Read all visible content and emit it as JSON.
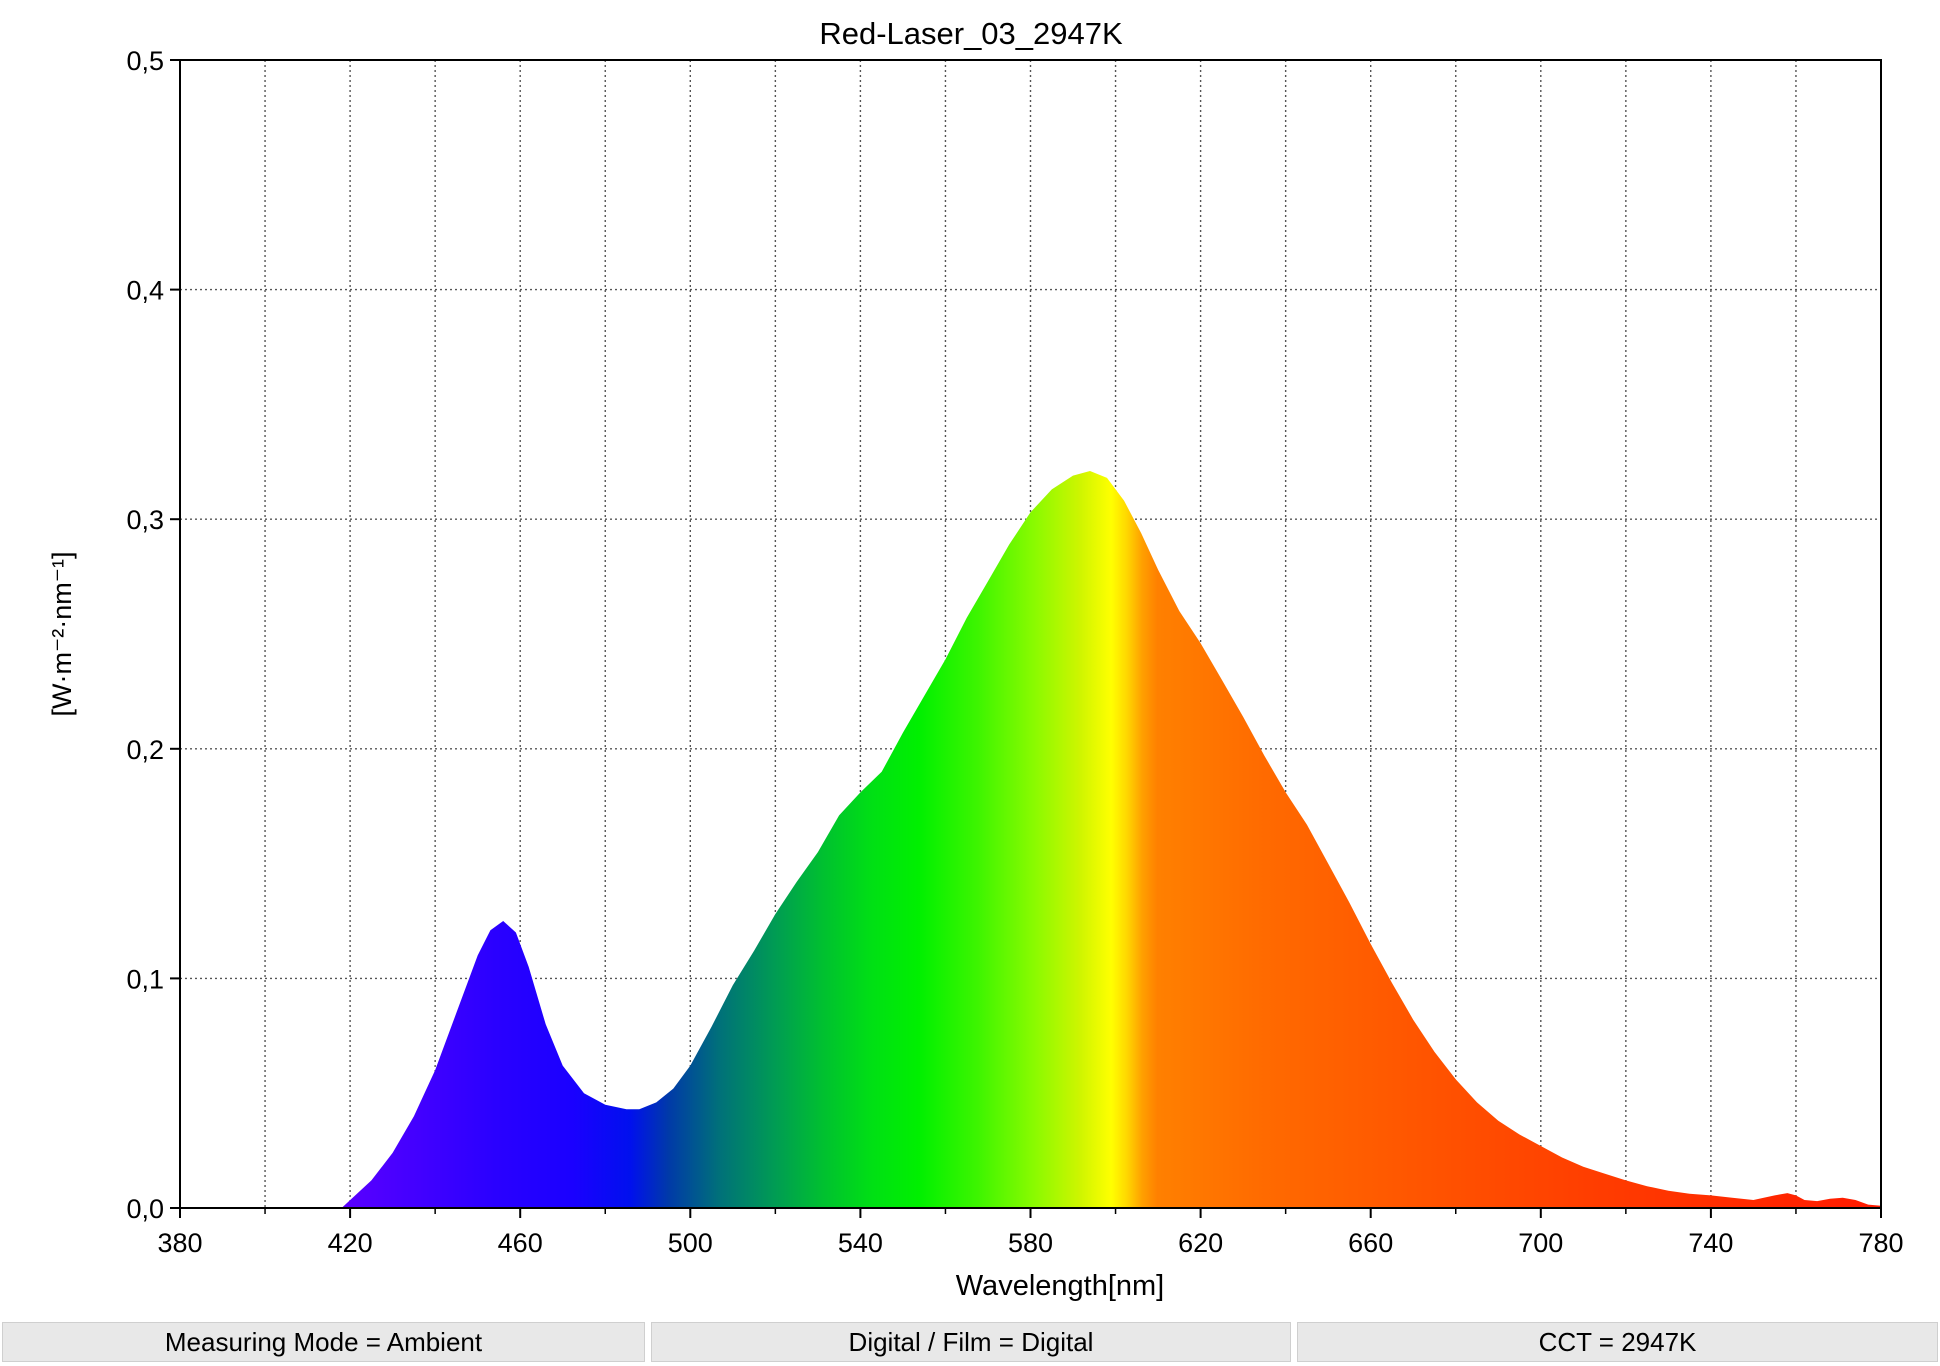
{
  "chart_data": {
    "type": "area",
    "title": "Red-Laser_03_2947K",
    "xlabel": "Wavelength[nm]",
    "ylabel": "[W·m⁻²·nm⁻¹]",
    "xlim": [
      380,
      780
    ],
    "ylim": [
      0,
      0.5
    ],
    "xticks": [
      380,
      420,
      460,
      500,
      540,
      580,
      620,
      660,
      700,
      740,
      780
    ],
    "xtick_labels": [
      "380",
      "420",
      "460",
      "500",
      "540",
      "580",
      "620",
      "660",
      "700",
      "740",
      "780"
    ],
    "yticks": [
      0,
      0.1,
      0.2,
      0.3,
      0.4,
      0.5
    ],
    "ytick_labels": [
      "0,0",
      "0,1",
      "0,2",
      "0,3",
      "0,4",
      "0,5"
    ],
    "grid": true,
    "fill": "visible-spectrum gradient",
    "series": [
      {
        "x": [
          418,
          425,
          430,
          435,
          440,
          445,
          450,
          453,
          456,
          459,
          462,
          466,
          470,
          475,
          480,
          485,
          488,
          492,
          496,
          500,
          505,
          510,
          515,
          520,
          525,
          530,
          535,
          540,
          545,
          550,
          555,
          560,
          565,
          570,
          575,
          580,
          585,
          590,
          594,
          598,
          602,
          606,
          610,
          615,
          620,
          625,
          630,
          635,
          640,
          645,
          650,
          655,
          660,
          665,
          670,
          675,
          680,
          685,
          690,
          695,
          700,
          705,
          710,
          715,
          720,
          725,
          730,
          735,
          740,
          745,
          750,
          755,
          758,
          760,
          762,
          765,
          768,
          771,
          774,
          777,
          780
        ],
        "y": [
          0.0,
          0.012,
          0.024,
          0.04,
          0.06,
          0.085,
          0.11,
          0.121,
          0.125,
          0.12,
          0.105,
          0.08,
          0.062,
          0.05,
          0.045,
          0.043,
          0.043,
          0.046,
          0.052,
          0.062,
          0.079,
          0.097,
          0.112,
          0.128,
          0.142,
          0.155,
          0.171,
          0.181,
          0.19,
          0.207,
          0.223,
          0.239,
          0.257,
          0.273,
          0.289,
          0.303,
          0.313,
          0.319,
          0.321,
          0.318,
          0.308,
          0.294,
          0.278,
          0.26,
          0.246,
          0.23,
          0.214,
          0.197,
          0.181,
          0.167,
          0.15,
          0.133,
          0.115,
          0.098,
          0.082,
          0.068,
          0.056,
          0.046,
          0.038,
          0.032,
          0.027,
          0.022,
          0.018,
          0.015,
          0.012,
          0.0095,
          0.0075,
          0.0062,
          0.0055,
          0.0045,
          0.0035,
          0.0055,
          0.0065,
          0.0055,
          0.0035,
          0.003,
          0.004,
          0.0045,
          0.0035,
          0.0015,
          0.001
        ]
      }
    ]
  },
  "status": {
    "measuring_mode": "Measuring Mode = Ambient",
    "digital_film": "Digital / Film = Digital",
    "cct": "CCT = 2947K"
  }
}
